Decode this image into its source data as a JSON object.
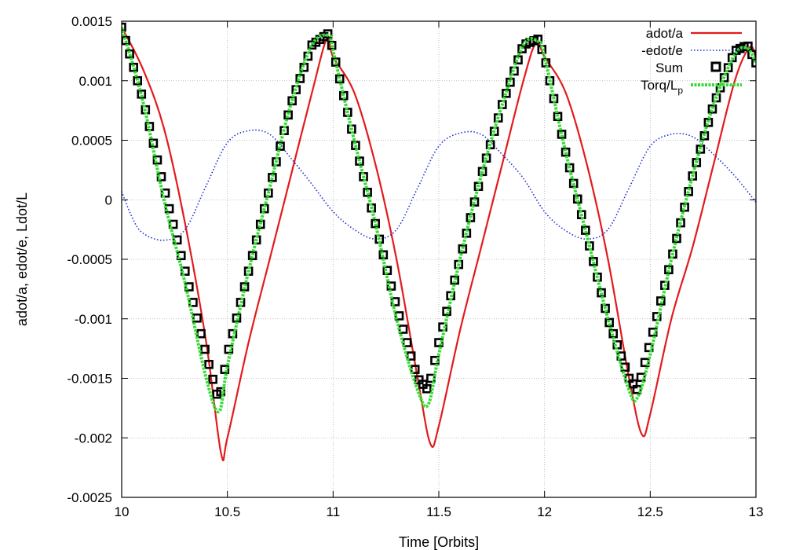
{
  "chart_data": {
    "type": "line",
    "title": "",
    "xlabel": "Time [Orbits]",
    "ylabel": "adot/a, edot/e, Ldot/L",
    "xlim": [
      10,
      13
    ],
    "ylim": [
      -0.0025,
      0.0015
    ],
    "xticks": [
      10,
      10.5,
      11,
      11.5,
      12,
      12.5,
      13
    ],
    "xtick_labels": [
      "10",
      "10.5",
      "11",
      "11.5",
      "12",
      "12.5",
      "13"
    ],
    "yticks": [
      -0.0025,
      -0.002,
      -0.0015,
      -0.001,
      -0.0005,
      0,
      0.0005,
      0.001,
      0.0015
    ],
    "ytick_labels": [
      "-0.0025",
      "-0.002",
      "-0.0015",
      "-0.001",
      "-0.0005",
      "0",
      "0.0005",
      "0.001",
      "0.0015"
    ],
    "grid": true,
    "legend_position": "top-right",
    "series": [
      {
        "name": "adot/a",
        "style": "solid",
        "color": "#e41a1c",
        "x": [
          10.0,
          10.1,
          10.2,
          10.3,
          10.4,
          10.47,
          10.5,
          10.6,
          10.7,
          10.8,
          10.9,
          10.97,
          11.0,
          11.1,
          11.2,
          11.3,
          11.4,
          11.46,
          11.5,
          11.6,
          11.7,
          11.8,
          11.9,
          11.96,
          12.0,
          12.1,
          12.2,
          12.3,
          12.4,
          12.46,
          12.5,
          12.6,
          12.7,
          12.8,
          12.9,
          12.97,
          13.0
        ],
        "y": [
          0.00145,
          0.0011,
          0.0006,
          -0.0002,
          -0.0012,
          -0.00213,
          -0.002,
          -0.0012,
          -0.0005,
          0.0002,
          0.0009,
          0.00135,
          0.0012,
          0.0009,
          0.0003,
          -0.0005,
          -0.0015,
          -0.00205,
          -0.0019,
          -0.0011,
          -0.0004,
          0.0003,
          0.001,
          0.00132,
          0.0012,
          0.0009,
          0.0003,
          -0.0005,
          -0.0015,
          -0.00197,
          -0.0018,
          -0.001,
          -0.0004,
          0.0003,
          0.001,
          0.00128,
          0.0012
        ]
      },
      {
        "name": "-edot/e",
        "style": "dotted",
        "color": "#1f2fd0",
        "x": [
          10.0,
          10.05,
          10.1,
          10.2,
          10.3,
          10.4,
          10.5,
          10.6,
          10.7,
          10.8,
          10.9,
          11.0,
          11.1,
          11.2,
          11.3,
          11.4,
          11.5,
          11.6,
          11.7,
          11.8,
          11.9,
          12.0,
          12.1,
          12.2,
          12.3,
          12.4,
          12.5,
          12.6,
          12.7,
          12.8,
          12.9,
          13.0
        ],
        "y": [
          7e-05,
          -0.00015,
          -0.00028,
          -0.00034,
          -0.00025,
          0.00012,
          0.00048,
          0.00058,
          0.00055,
          0.00035,
          0.00013,
          -0.0001,
          -0.00025,
          -0.00033,
          -0.00025,
          0.0001,
          0.00045,
          0.00056,
          0.00055,
          0.00038,
          0.00018,
          -0.0001,
          -0.00026,
          -0.00033,
          -0.00025,
          0.0001,
          0.00045,
          0.00055,
          0.00053,
          0.00038,
          0.0002,
          -2e-05
        ]
      },
      {
        "name": "Sum",
        "style": "markers",
        "color": "#000000",
        "x": [
          10.0,
          10.1,
          10.2,
          10.3,
          10.4,
          10.46,
          10.5,
          10.6,
          10.7,
          10.8,
          10.9,
          10.98,
          11.0,
          11.1,
          11.2,
          11.3,
          11.4,
          11.45,
          11.5,
          11.6,
          11.7,
          11.8,
          11.9,
          11.97,
          12.0,
          12.1,
          12.2,
          12.3,
          12.4,
          12.44,
          12.5,
          12.6,
          12.7,
          12.8,
          12.9,
          12.96,
          13.0
        ],
        "y": [
          0.00145,
          0.00085,
          0.0001,
          -0.0006,
          -0.0013,
          -0.0017,
          -0.0013,
          -0.0006,
          0.0001,
          0.0008,
          0.0013,
          0.0014,
          0.00125,
          0.0005,
          -0.0002,
          -0.0009,
          -0.0015,
          -0.0016,
          -0.0012,
          -0.0005,
          0.0002,
          0.0008,
          0.0013,
          0.00135,
          0.0012,
          0.0004,
          -0.0003,
          -0.001,
          -0.0015,
          -0.0016,
          -0.0012,
          -0.0005,
          0.0002,
          0.0008,
          0.00125,
          0.0013,
          0.00115
        ]
      },
      {
        "name": "Torq/Lp",
        "style": "dashed-thick",
        "color": "#33dd33",
        "x": [
          10.0,
          10.1,
          10.2,
          10.3,
          10.4,
          10.46,
          10.5,
          10.6,
          10.7,
          10.8,
          10.9,
          10.98,
          11.0,
          11.1,
          11.2,
          11.3,
          11.4,
          11.45,
          11.5,
          11.6,
          11.7,
          11.8,
          11.9,
          11.97,
          12.0,
          12.1,
          12.2,
          12.3,
          12.4,
          12.44,
          12.5,
          12.6,
          12.7,
          12.8,
          12.9,
          12.96,
          13.0
        ],
        "y": [
          0.00145,
          0.00083,
          0.0,
          -0.0007,
          -0.0015,
          -0.00178,
          -0.0014,
          -0.0006,
          0.0001,
          0.0008,
          0.0013,
          0.00138,
          0.00125,
          0.0005,
          -0.0002,
          -0.001,
          -0.0016,
          -0.00172,
          -0.0013,
          -0.0005,
          0.0002,
          0.0008,
          0.0013,
          0.00133,
          0.0012,
          0.0004,
          -0.0003,
          -0.001,
          -0.0016,
          -0.00166,
          -0.0013,
          -0.0005,
          0.0002,
          0.0008,
          0.00122,
          0.00127,
          0.00115
        ]
      }
    ],
    "legend": {
      "labels": [
        "adot/a",
        "-edot/e",
        "Sum",
        "Torq/L"
      ],
      "torq_subscript": "p"
    }
  }
}
